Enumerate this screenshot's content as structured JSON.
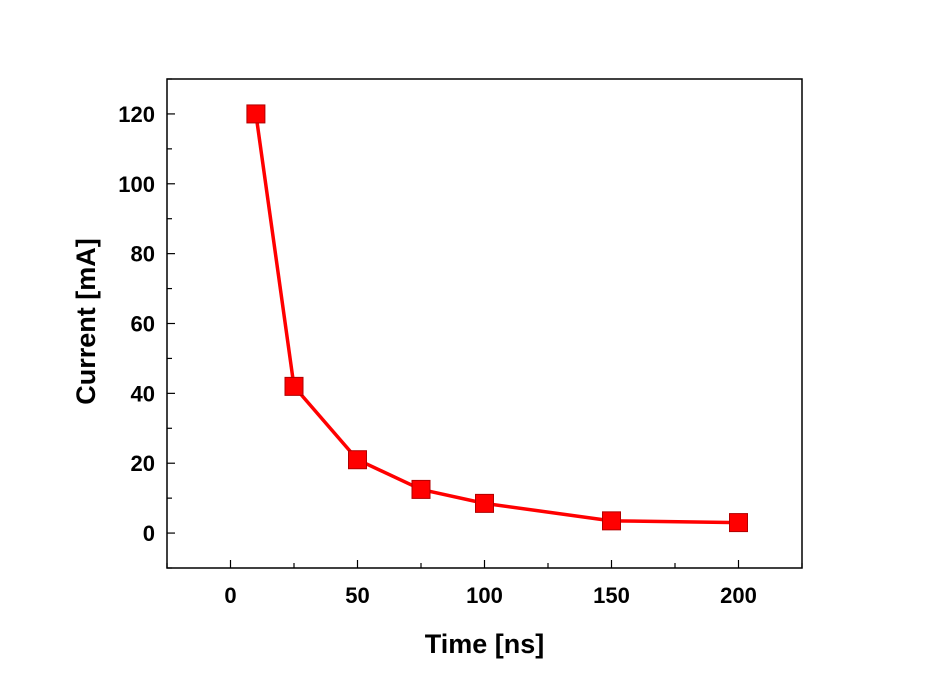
{
  "chart_data": {
    "type": "line",
    "title": "",
    "xlabel": "Time [ns]",
    "ylabel": "Current [mA]",
    "xlim": [
      -25,
      225
    ],
    "ylim": [
      -10,
      130
    ],
    "xticks": [
      0,
      50,
      100,
      150,
      200
    ],
    "yticks": [
      0,
      20,
      40,
      60,
      80,
      100,
      120
    ],
    "grid": false,
    "legend": "none",
    "series": [
      {
        "color": "#ff0000",
        "marker": "square",
        "x": [
          10,
          25,
          50,
          75,
          100,
          150,
          200
        ],
        "y": [
          120,
          42,
          21,
          12.5,
          8.5,
          3.5,
          3
        ]
      }
    ]
  }
}
